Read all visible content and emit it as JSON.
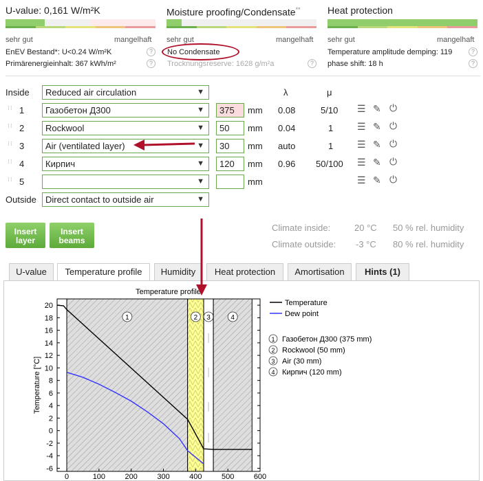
{
  "uvalue": {
    "title": "U-value: 0,161 W/m²K",
    "good": "sehr gut",
    "bad": "mangelhaft",
    "line1": "EnEV Bestand*: U<0.24 W/m²K",
    "line2": "Primärenergieinhalt: 367 kWh/m²"
  },
  "moisture": {
    "title": "Moisture proofing/Condensate",
    "sup": "**",
    "good": "sehr gut",
    "bad": "mangelhaft",
    "line1": "No Condensate",
    "line2": "Trocknungsreserve: 1628 g/m²a"
  },
  "heat": {
    "title": "Heat protection",
    "good": "sehr gut",
    "bad": "mangelhaft",
    "line1": "Temperature amplitude demping: 119",
    "line2": "phase shift: 18 h"
  },
  "help_glyph": "?",
  "layers": {
    "inside_label": "Inside",
    "inside_value": "Reduced air circulation",
    "outside_label": "Outside",
    "outside_value": "Direct contact to outside air",
    "lambda_header": "λ",
    "mu_header": "μ",
    "unit": "mm",
    "rows": [
      {
        "num": "1",
        "material": "Газобетон Д300",
        "thickness": "375",
        "lambda": "0.08",
        "mu": "5/10"
      },
      {
        "num": "2",
        "material": "Rockwool",
        "thickness": "50",
        "lambda": "0.04",
        "mu": "1"
      },
      {
        "num": "3",
        "material": "Air (ventilated layer)",
        "thickness": "30",
        "lambda": "auto",
        "mu": "1"
      },
      {
        "num": "4",
        "material": "Кирпич",
        "thickness": "120",
        "lambda": "0.96",
        "mu": "50/100"
      },
      {
        "num": "5",
        "material": "",
        "thickness": "",
        "lambda": "",
        "mu": ""
      }
    ]
  },
  "buttons": {
    "insert_layer": "Insert layer",
    "insert_beams": "Insert beams"
  },
  "climate": {
    "inside_label": "Climate inside:",
    "inside_temp": "20 °C",
    "inside_hum": "50 % rel. humidity",
    "outside_label": "Climate outside:",
    "outside_temp": "-3 °C",
    "outside_hum": "80 % rel. humidity"
  },
  "tabs": [
    "U-value",
    "Temperature profile",
    "Humidity",
    "Heat protection",
    "Amortisation",
    "Hints (1)"
  ],
  "active_tab": "Temperature profile",
  "colors": {
    "green": "#6aa84f",
    "accent_red": "#b0102a",
    "temperature_line": "#000000",
    "dew_line": "#3333ff",
    "insulation": "#ffff99"
  },
  "chart_data": {
    "type": "line",
    "title": "Temperature profile",
    "ylabel": "Temperature [°C]",
    "xlabel": "",
    "xlim": [
      -30,
      600
    ],
    "ylim": [
      -6.5,
      21
    ],
    "xticks": [
      0,
      100,
      200,
      300,
      400,
      500,
      600
    ],
    "yticks": [
      -6,
      -4,
      -2,
      0,
      2,
      4,
      6,
      8,
      10,
      12,
      14,
      16,
      18,
      20
    ],
    "layers": [
      {
        "id": "1",
        "name": "Газобетон Д300 (375 mm)",
        "start": 0,
        "end": 375
      },
      {
        "id": "2",
        "name": "Rockwool (50 mm)",
        "start": 375,
        "end": 425
      },
      {
        "id": "3",
        "name": "Air (30 mm)",
        "start": 425,
        "end": 455
      },
      {
        "id": "4",
        "name": "Кирпич (120 mm)",
        "start": 455,
        "end": 575
      }
    ],
    "series": [
      {
        "name": "Temperature",
        "x": [
          -30,
          -10,
          0,
          375,
          425,
          455,
          575
        ],
        "y": [
          20,
          19.9,
          19.3,
          1.8,
          -2.9,
          -3,
          -3
        ]
      },
      {
        "name": "Dew point",
        "x": [
          0,
          50,
          100,
          150,
          200,
          250,
          300,
          350,
          375,
          425
        ],
        "y": [
          9.3,
          8.5,
          7.4,
          6.1,
          4.7,
          3,
          1.1,
          -1.3,
          -3.2,
          -5.3
        ]
      }
    ],
    "legend": "top-right",
    "grid": false
  }
}
